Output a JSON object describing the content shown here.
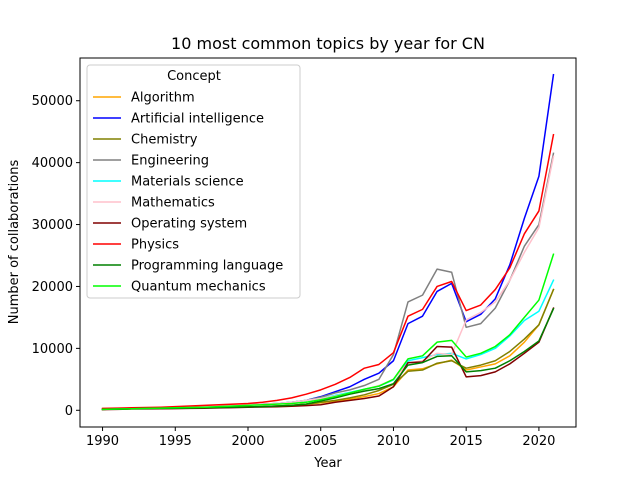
{
  "chart_data": {
    "type": "line",
    "title": "10 most common topics by year for CN",
    "xlabel": "Year",
    "ylabel": "Number of collaborations",
    "xlim": [
      1988.45,
      2022.55
    ],
    "ylim": [
      -2700,
      56900
    ],
    "xticks": [
      1990,
      1995,
      2000,
      2005,
      2010,
      2015,
      2020
    ],
    "yticks": [
      0,
      10000,
      20000,
      30000,
      40000,
      50000
    ],
    "ytick_labels": [
      "0",
      "10000",
      "20000",
      "30000",
      "40000",
      "50000"
    ],
    "grid": false,
    "legend_title": "Concept",
    "legend_position": "top-left",
    "x": [
      1990,
      1991,
      1992,
      1993,
      1994,
      1995,
      1996,
      1997,
      1998,
      1999,
      2000,
      2001,
      2002,
      2003,
      2004,
      2005,
      2006,
      2007,
      2008,
      2009,
      2010,
      2011,
      2012,
      2013,
      2014,
      2015,
      2016,
      2017,
      2018,
      2019,
      2020,
      2021
    ],
    "series": [
      {
        "name": "Algorithm",
        "color": "#ffa500",
        "values": [
          150,
          200,
          250,
          280,
          300,
          330,
          360,
          400,
          450,
          500,
          550,
          600,
          700,
          800,
          1000,
          1200,
          1500,
          1800,
          2200,
          2700,
          3800,
          6500,
          6700,
          7500,
          8100,
          6500,
          7000,
          7500,
          8800,
          11000,
          13800,
          19500
        ]
      },
      {
        "name": "Artificial intelligence",
        "color": "#0000ff",
        "values": [
          200,
          250,
          300,
          350,
          400,
          450,
          520,
          600,
          700,
          800,
          900,
          1000,
          1100,
          1300,
          1600,
          2200,
          3000,
          3800,
          5000,
          6000,
          8000,
          14000,
          15200,
          19200,
          20500,
          14300,
          15500,
          18000,
          23500,
          31000,
          37800,
          54200
        ]
      },
      {
        "name": "Chemistry",
        "color": "#808000",
        "values": [
          150,
          200,
          250,
          280,
          300,
          330,
          360,
          400,
          450,
          500,
          550,
          600,
          700,
          800,
          1000,
          1300,
          1600,
          2000,
          2500,
          3200,
          4200,
          6300,
          6500,
          7600,
          8000,
          6800,
          7300,
          8000,
          9500,
          11500,
          13800,
          19500
        ]
      },
      {
        "name": "Engineering",
        "color": "#808080",
        "values": [
          200,
          250,
          300,
          350,
          400,
          450,
          500,
          600,
          700,
          800,
          900,
          1000,
          1100,
          1300,
          1600,
          2100,
          2800,
          3300,
          4000,
          5000,
          9000,
          17500,
          18600,
          22800,
          22300,
          13400,
          14000,
          16500,
          21000,
          26500,
          30000,
          41500
        ]
      },
      {
        "name": "Materials science",
        "color": "#00ffff",
        "values": [
          200,
          250,
          300,
          350,
          400,
          450,
          500,
          550,
          650,
          750,
          850,
          950,
          1100,
          1300,
          1600,
          1900,
          2400,
          2900,
          3400,
          3900,
          4900,
          8000,
          8500,
          9000,
          9200,
          8300,
          9000,
          10000,
          12000,
          14500,
          16000,
          21000
        ]
      },
      {
        "name": "Mathematics",
        "color": "#ffc0cb",
        "values": [
          200,
          250,
          300,
          350,
          400,
          450,
          500,
          600,
          700,
          800,
          900,
          1000,
          1100,
          1300,
          1600,
          1900,
          2300,
          2800,
          3300,
          4000,
          5000,
          7600,
          8000,
          9200,
          9000,
          14600,
          15800,
          17500,
          21000,
          25500,
          29500,
          41000
        ]
      },
      {
        "name": "Operating system",
        "color": "#800000",
        "values": [
          100,
          150,
          200,
          230,
          250,
          270,
          300,
          330,
          380,
          430,
          480,
          530,
          580,
          650,
          750,
          900,
          1300,
          1600,
          1900,
          2300,
          3800,
          7700,
          7800,
          10300,
          10200,
          5400,
          5600,
          6200,
          7500,
          9200,
          11000,
          16500
        ]
      },
      {
        "name": "Physics",
        "color": "#ff0000",
        "values": [
          300,
          350,
          400,
          450,
          500,
          600,
          700,
          800,
          900,
          1000,
          1100,
          1300,
          1600,
          2000,
          2600,
          3300,
          4200,
          5300,
          6800,
          7400,
          9300,
          15200,
          16300,
          20000,
          20800,
          16100,
          17000,
          19500,
          23000,
          28500,
          32200,
          44500
        ]
      },
      {
        "name": "Programming language",
        "color": "#008000",
        "values": [
          150,
          200,
          250,
          280,
          300,
          330,
          360,
          400,
          450,
          500,
          550,
          600,
          700,
          800,
          1000,
          1500,
          2000,
          2600,
          3100,
          3500,
          4300,
          7300,
          7700,
          8700,
          8800,
          6200,
          6400,
          6800,
          8000,
          9500,
          11200,
          16400
        ]
      },
      {
        "name": "Quantum mechanics",
        "color": "#00ff00",
        "values": [
          150,
          200,
          250,
          300,
          350,
          400,
          450,
          500,
          600,
          700,
          800,
          900,
          1000,
          1100,
          1300,
          1700,
          2200,
          2800,
          3400,
          3900,
          5000,
          8300,
          8800,
          11000,
          11300,
          8600,
          9200,
          10300,
          12200,
          15000,
          17800,
          25200
        ]
      }
    ]
  }
}
